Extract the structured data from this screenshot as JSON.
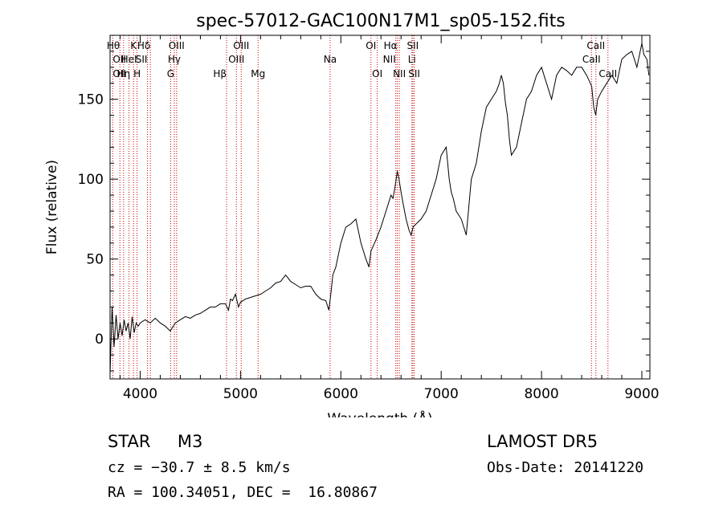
{
  "chart_data": {
    "type": "line",
    "title": "spec-57012-GAC100N17M1_sp05-152.fits",
    "xlabel": "Wavelength (Å)",
    "ylabel": "Flux (relative)",
    "xlim": [
      3700,
      9080
    ],
    "ylim": [
      -25,
      190
    ],
    "x_ticks": [
      4000,
      5000,
      6000,
      7000,
      8000,
      9000
    ],
    "y_ticks": [
      0,
      50,
      100,
      150
    ],
    "grid": false,
    "series": [
      {
        "x": [
          3700,
          3720,
          3740,
          3760,
          3780,
          3800,
          3820,
          3840,
          3860,
          3880,
          3900,
          3920,
          3940,
          3960,
          3980,
          4000,
          4050,
          4100,
          4150,
          4200,
          4250,
          4300,
          4350,
          4400,
          4450,
          4500,
          4550,
          4600,
          4650,
          4700,
          4750,
          4800,
          4850,
          4880,
          4900,
          4920,
          4950,
          4980,
          5000,
          5050,
          5100,
          5150,
          5200,
          5250,
          5300,
          5350,
          5400,
          5450,
          5500,
          5550,
          5600,
          5650,
          5700,
          5750,
          5800,
          5850,
          5880,
          5900,
          5920,
          5950,
          6000,
          6050,
          6100,
          6150,
          6200,
          6250,
          6280,
          6300,
          6350,
          6400,
          6450,
          6500,
          6520,
          6540,
          6563,
          6580,
          6600,
          6620,
          6650,
          6680,
          6700,
          6720,
          6750,
          6800,
          6850,
          6900,
          6950,
          7000,
          7050,
          7080,
          7100,
          7120,
          7150,
          7200,
          7250,
          7300,
          7350,
          7400,
          7450,
          7500,
          7550,
          7580,
          7600,
          7620,
          7640,
          7660,
          7680,
          7700,
          7750,
          7800,
          7850,
          7900,
          7950,
          8000,
          8050,
          8100,
          8150,
          8200,
          8250,
          8300,
          8350,
          8400,
          8450,
          8500,
          8520,
          8540,
          8560,
          8600,
          8650,
          8700,
          8750,
          8800,
          8850,
          8900,
          8950,
          9000,
          9020,
          9050,
          9070
        ],
        "values": [
          -22,
          20,
          -5,
          15,
          0,
          10,
          2,
          12,
          5,
          10,
          0,
          14,
          4,
          10,
          8,
          10,
          12,
          10,
          13,
          10,
          8,
          5,
          10,
          12,
          14,
          13,
          15,
          16,
          18,
          20,
          20,
          22,
          22,
          18,
          25,
          24,
          28,
          20,
          23,
          25,
          26,
          27,
          28,
          30,
          32,
          35,
          36,
          40,
          36,
          34,
          32,
          33,
          33,
          28,
          25,
          24,
          18,
          28,
          40,
          45,
          60,
          70,
          72,
          75,
          60,
          50,
          45,
          55,
          62,
          70,
          80,
          90,
          88,
          95,
          105,
          100,
          92,
          85,
          75,
          68,
          65,
          70,
          72,
          75,
          80,
          90,
          100,
          115,
          120,
          100,
          92,
          88,
          80,
          75,
          65,
          100,
          110,
          130,
          145,
          150,
          155,
          160,
          165,
          160,
          148,
          140,
          125,
          115,
          120,
          135,
          150,
          155,
          165,
          170,
          160,
          150,
          165,
          170,
          168,
          165,
          170,
          170,
          165,
          158,
          145,
          140,
          150,
          155,
          160,
          165,
          160,
          175,
          178,
          180,
          170,
          185,
          178,
          175,
          165
        ]
      }
    ],
    "line_markers": [
      {
        "label": "Hθ",
        "x": 3798,
        "row": 0,
        "anchor": "end"
      },
      {
        "label": "K",
        "x": 3934,
        "row": 0,
        "anchor": "middle"
      },
      {
        "label": "Hδ",
        "x": 4102,
        "row": 0,
        "anchor": "end"
      },
      {
        "label": "OIII",
        "x": 4363,
        "row": 0,
        "anchor": "middle"
      },
      {
        "label": "OIII",
        "x": 5007,
        "row": 0,
        "anchor": "middle"
      },
      {
        "label": "OI",
        "x": 6300,
        "row": 0,
        "anchor": "middle"
      },
      {
        "label": "Hα",
        "x": 6563,
        "row": 0,
        "anchor": "end"
      },
      {
        "label": "SII",
        "x": 6717,
        "row": 0,
        "anchor": "middle"
      },
      {
        "label": "CaII",
        "x": 8542,
        "row": 0,
        "anchor": "middle"
      },
      {
        "label": "OII",
        "x": 3727,
        "row": 1,
        "anchor": "start"
      },
      {
        "label": "HeI",
        "x": 3889,
        "row": 1,
        "anchor": "middle"
      },
      {
        "label": "SII",
        "x": 4072,
        "row": 1,
        "anchor": "end"
      },
      {
        "label": "Hγ",
        "x": 4340,
        "row": 1,
        "anchor": "middle"
      },
      {
        "label": "OIII",
        "x": 4959,
        "row": 1,
        "anchor": "middle"
      },
      {
        "label": "Na",
        "x": 5893,
        "row": 1,
        "anchor": "middle"
      },
      {
        "label": "NII",
        "x": 6548,
        "row": 1,
        "anchor": "end"
      },
      {
        "label": "Li",
        "x": 6708,
        "row": 1,
        "anchor": "middle"
      },
      {
        "label": "CaII",
        "x": 8498,
        "row": 1,
        "anchor": "middle"
      },
      {
        "label": "OII",
        "x": 3727,
        "row": 2,
        "anchor": "start"
      },
      {
        "label": "Hη",
        "x": 3835,
        "row": 2,
        "anchor": "middle"
      },
      {
        "label": "H",
        "x": 3969,
        "row": 2,
        "anchor": "middle"
      },
      {
        "label": "G",
        "x": 4304,
        "row": 2,
        "anchor": "middle"
      },
      {
        "label": "Hβ",
        "x": 4861,
        "row": 2,
        "anchor": "end"
      },
      {
        "label": "Mg",
        "x": 5175,
        "row": 2,
        "anchor": "middle"
      },
      {
        "label": "OI",
        "x": 6363,
        "row": 2,
        "anchor": "middle"
      },
      {
        "label": "NII",
        "x": 6583,
        "row": 2,
        "anchor": "middle"
      },
      {
        "label": "SII",
        "x": 6731,
        "row": 2,
        "anchor": "middle"
      },
      {
        "label": "CaII",
        "x": 8662,
        "row": 2,
        "anchor": "middle"
      }
    ],
    "marker_lines": [
      3727,
      3798,
      3835,
      3889,
      3934,
      3969,
      4072,
      4102,
      4304,
      4340,
      4363,
      4861,
      4959,
      5007,
      5175,
      5893,
      6300,
      6363,
      6548,
      6563,
      6583,
      6708,
      6717,
      6731,
      8498,
      8542,
      8662
    ],
    "colors": {
      "spectrum": "#000000",
      "marker_line": "#cc0000",
      "axes": "#000000"
    }
  },
  "info": {
    "object_class": "STAR     M3",
    "survey": "LAMOST DR5",
    "redshift": "cz = −30.7 ± 8.5 km/s",
    "obs_date": "Obs-Date: 20141220",
    "ra_dec": "RA = 100.34051, DEC =  16.80867"
  }
}
